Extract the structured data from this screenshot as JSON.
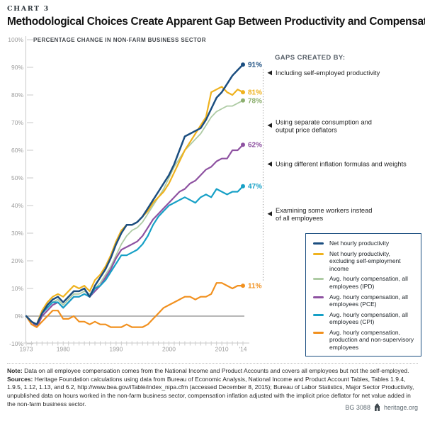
{
  "header": {
    "kicker": "CHART 3",
    "title": "Methodological Choices Create Apparent Gap Between Productivity and Compensation"
  },
  "chart_data": {
    "type": "line",
    "subtitle": "PERCENTAGE CHANGE IN NON-FARM BUSINESS SECTOR",
    "ylim": [
      -10,
      100
    ],
    "xlim": [
      1973,
      2014
    ],
    "grid": "off",
    "zero_baseline": true,
    "legend_position": "inside-right-bottom",
    "years": [
      1973,
      1974,
      1975,
      1976,
      1977,
      1978,
      1979,
      1980,
      1981,
      1982,
      1983,
      1984,
      1985,
      1986,
      1987,
      1988,
      1989,
      1990,
      1991,
      1992,
      1993,
      1994,
      1995,
      1996,
      1997,
      1998,
      1999,
      2000,
      2001,
      2002,
      2003,
      2004,
      2005,
      2006,
      2007,
      2008,
      2009,
      2010,
      2011,
      2012,
      2013,
      2014
    ],
    "y_ticks": [
      {
        "value": 100,
        "label": "100%"
      },
      {
        "value": 90,
        "label": "90%"
      },
      {
        "value": 80,
        "label": "80%"
      },
      {
        "value": 70,
        "label": "70%"
      },
      {
        "value": 60,
        "label": "60%"
      },
      {
        "value": 50,
        "label": "50%"
      },
      {
        "value": 40,
        "label": "40%"
      },
      {
        "value": 30,
        "label": "30%"
      },
      {
        "value": 20,
        "label": "20%"
      },
      {
        "value": 10,
        "label": "10%"
      },
      {
        "value": 0,
        "label": "0%"
      },
      {
        "value": -10,
        "label": "-10%"
      }
    ],
    "x_tick_labels": [
      {
        "year": 1973,
        "label": "1973"
      },
      {
        "year": 1980,
        "label": "1980"
      },
      {
        "year": 1990,
        "label": "1990"
      },
      {
        "year": 2000,
        "label": "2000"
      },
      {
        "year": 2010,
        "label": "2010"
      },
      {
        "year": 2014,
        "label": "'14"
      }
    ],
    "series": [
      {
        "id": "net-hourly-productivity",
        "name": "Net hourly productivity",
        "color": "#1B4E80",
        "label_color": "#1B4E80",
        "end_label": "91%",
        "stroke_width": 2.5,
        "values": [
          0,
          -2,
          -3,
          1,
          4,
          6,
          7,
          5,
          7,
          9,
          9,
          10,
          7,
          11,
          14,
          17,
          21,
          26,
          30,
          33,
          33,
          34,
          36,
          39,
          42,
          45,
          48,
          51,
          55,
          60,
          65,
          66,
          67,
          68,
          71,
          75,
          79,
          81,
          84,
          87,
          89,
          91
        ]
      },
      {
        "id": "net-hourly-productivity-excl-self-employment",
        "name": "Net hourly productivity, excluding self-employment income",
        "color": "#EFB21E",
        "label_color": "#E3A califica81B",
        "end_label": "81%",
        "stroke_width": 2.2,
        "values": [
          0,
          -2,
          -3,
          2,
          5,
          7,
          8,
          7,
          9,
          11,
          10,
          11,
          9,
          13,
          15,
          18,
          22,
          27,
          31,
          33,
          33,
          34,
          36,
          38,
          41,
          43,
          45,
          48,
          52,
          56,
          60,
          63,
          66,
          69,
          72,
          81,
          82,
          83,
          81,
          80,
          82,
          81
        ]
      },
      {
        "id": "avg-comp-ipd",
        "name": "Avg. hourly compensation, all employees (IPD)",
        "color": "#AECBA4",
        "label_color": "#8CAF6E",
        "end_label": "78%",
        "stroke_width": 1.8,
        "values": [
          0,
          -2,
          -3,
          1,
          3,
          5,
          6,
          4,
          6,
          8,
          8,
          9,
          8,
          10,
          12,
          15,
          18,
          22,
          26,
          29,
          31,
          32,
          34,
          37,
          40,
          43,
          46,
          50,
          54,
          57,
          60,
          62,
          64,
          66,
          69,
          72,
          74,
          75,
          76,
          76,
          77,
          78
        ]
      },
      {
        "id": "avg-comp-pce",
        "name": "Avg. hourly compensation, all employees (PCE)",
        "color": "#8E52A1",
        "label_color": "#8E52A1",
        "end_label": "62%",
        "stroke_width": 2.2,
        "values": [
          0,
          -2,
          -4,
          0,
          2,
          4,
          5,
          3,
          5,
          7,
          7,
          8,
          7,
          9,
          11,
          14,
          17,
          21,
          24,
          25,
          26,
          27,
          29,
          32,
          35,
          37,
          39,
          41,
          43,
          45,
          46,
          48,
          49,
          51,
          53,
          54,
          56,
          57,
          57,
          60,
          60,
          62
        ]
      },
      {
        "id": "avg-comp-cpi",
        "name": "Avg. hourly compensation, all employees (CPI)",
        "color": "#16A0C6",
        "label_color": "#16A0C6",
        "end_label": "47%",
        "stroke_width": 2.2,
        "values": [
          0,
          -2,
          -3,
          1,
          3,
          5,
          5,
          3,
          5,
          7,
          7,
          8,
          7,
          10,
          11,
          13,
          16,
          19,
          22,
          22,
          23,
          24,
          26,
          29,
          33,
          36,
          38,
          40,
          41,
          42,
          43,
          42,
          41,
          43,
          44,
          43,
          46,
          45,
          44,
          45,
          45,
          47
        ]
      },
      {
        "id": "avg-comp-production",
        "name": "Avg. hourly compensation, production and non-supervisory employees",
        "color": "#F1901E",
        "label_color": "#F1901E",
        "end_label": "11%",
        "stroke_width": 2.2,
        "values": [
          0,
          -3,
          -4,
          -2,
          0,
          2,
          2,
          -1,
          -1,
          0,
          -2,
          -2,
          -3,
          -2,
          -3,
          -3,
          -4,
          -4,
          -4,
          -3,
          -4,
          -4,
          -4,
          -3,
          -1,
          1,
          3,
          4,
          5,
          6,
          7,
          7,
          6,
          7,
          7,
          8,
          12,
          12,
          11,
          10,
          11,
          11
        ]
      }
    ],
    "gaps_header": "GAPS CREATED BY:",
    "annotations": [
      {
        "lines": [
          "Including self-employed productivity"
        ],
        "anchor_value": 88
      },
      {
        "lines": [
          "Using separate consumption and",
          "output price deflators"
        ],
        "anchor_value": 69
      },
      {
        "lines": [
          "Using different inflation formulas and weights"
        ],
        "anchor_value": 55
      },
      {
        "lines": [
          "Examining some workers instead",
          "of all employees"
        ],
        "anchor_value": 37
      }
    ],
    "colors": {
      "axis": "#c8c8c8",
      "minor_tick": "#cccccc",
      "tick_label": "#9b9b9b",
      "zero_line": "#8c8c8c",
      "gap_line": "#999999",
      "annotation": "#1f1f1f",
      "gaps_header": "#59616a",
      "legend_border": "#1B4E80"
    }
  },
  "legend": {
    "items": [
      {
        "label": "Net hourly productivity",
        "color": "#1B4E80"
      },
      {
        "label": "Net hourly productivity, excluding self-employment income",
        "color": "#EFB21E"
      },
      {
        "label": "Avg. hourly compensation, all employees (IPD)",
        "color": "#AECBA4"
      },
      {
        "label": "Avg. hourly compensation, all employees (PCE)",
        "color": "#8E52A1"
      },
      {
        "label": "Avg. hourly compensation, all employees (CPI)",
        "color": "#16A0C6"
      },
      {
        "label": "Avg. hourly compensation, production and non-supervisory employees",
        "color": "#F1901E"
      }
    ]
  },
  "notes": {
    "note_label": "Note:",
    "note": "Data on all employee compensation comes from the National Income and Product Accounts and covers all employees but not the self-employed.",
    "sources_label": "Sources:",
    "sources": "Heritage Foundation calculations using data from Bureau of Economic Analysis, National Income and Product Account Tables, Tables 1.9.4, 1.9.5, 1.12, 1.13, and 6.2, http://www.bea.gov/iTable/index_nipa.cfm (accessed December 8, 2015); Bureau of Labor Statistics, Major Sector Productivity, unpublished data on hours worked in the non-farm business sector, compensation inflation adjusted with the implicit price deflator for net value added in the non-farm business sector."
  },
  "footer": {
    "doc_id": "BG 3088",
    "site": "heritage.org"
  }
}
